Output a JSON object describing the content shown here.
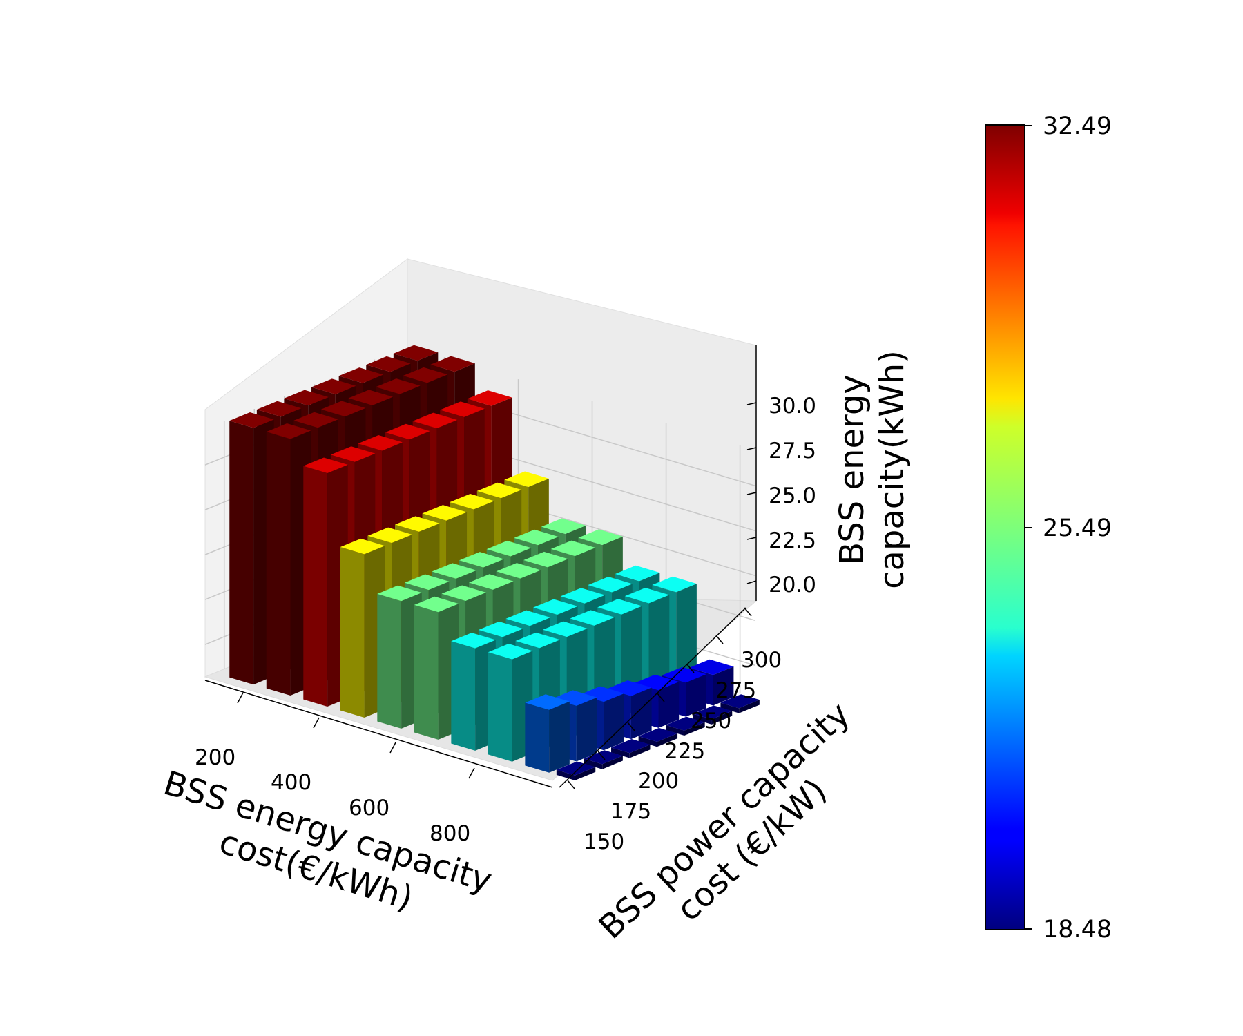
{
  "chart_data": {
    "type": "bar3d",
    "colormap": "jet",
    "x_axis": {
      "label_line1": "BSS energy capacity",
      "label_line2": "cost(€/kWh)",
      "ticks": [
        "200",
        "400",
        "600",
        "800"
      ],
      "categories": [
        150,
        250,
        350,
        450,
        550,
        650,
        750,
        850,
        950
      ]
    },
    "y_axis": {
      "label_line1": "BSS power capacity",
      "label_line2": "cost (€/kW)",
      "ticks": [
        "150",
        "175",
        "200",
        "225",
        "250",
        "275",
        "300"
      ],
      "categories": [
        150,
        175,
        200,
        225,
        250,
        275,
        300
      ]
    },
    "z_axis": {
      "label_line1": "BSS energy",
      "label_line2": "capacity(kWh)",
      "ticks": [
        "20.0",
        "22.5",
        "25.0",
        "27.5",
        "30.0"
      ],
      "zlim": [
        18.48,
        32.49
      ]
    },
    "bar_values_by_x": [
      [
        32.49,
        32.49,
        32.49,
        32.49,
        32.49,
        32.49,
        32.49
      ],
      [
        32.49,
        32.49,
        32.49,
        32.49,
        32.49,
        32.49,
        32.49
      ],
      [
        31.2,
        31.2,
        31.2,
        31.2,
        31.2,
        31.2,
        31.2
      ],
      [
        27.3,
        27.3,
        27.3,
        27.3,
        27.3,
        27.3,
        27.3
      ],
      [
        25.3,
        25.3,
        25.3,
        25.3,
        25.3,
        25.3,
        25.3
      ],
      [
        25.3,
        25.3,
        25.3,
        25.3,
        25.3,
        25.3,
        25.3
      ],
      [
        23.9,
        23.9,
        23.9,
        23.9,
        23.9,
        23.9,
        23.9
      ],
      [
        23.9,
        23.9,
        23.9,
        23.9,
        23.9,
        23.9,
        23.9
      ],
      [
        21.7,
        21.3,
        20.9,
        20.6,
        20.3,
        20.1,
        19.9
      ]
    ],
    "last_row_low_values": [
      18.48,
      18.48,
      18.48,
      18.48,
      18.48,
      18.48,
      18.48
    ],
    "colorbar": {
      "ticks": [
        "32.49",
        "25.49",
        "18.48"
      ],
      "min": 18.48,
      "max": 32.49
    }
  }
}
